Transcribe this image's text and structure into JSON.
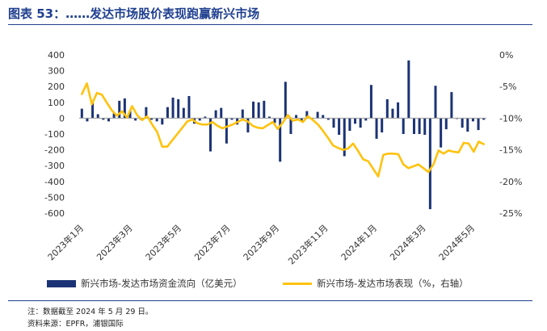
{
  "header": {
    "title": "图表 53：……发达市场股价表现跑赢新兴市场"
  },
  "footer": {
    "note": "注：数据截至 2024 年 5 月 29 日。",
    "source": "资料来源：EPFR，浦银国际"
  },
  "colors": {
    "bars": "#1b3375",
    "line": "#ffc20e",
    "title": "#1f3f8f"
  },
  "chart_data": {
    "type": "bar",
    "title": "",
    "x_tick_labels": [
      "2023年1月",
      "2023年3月",
      "2023年5月",
      "2023年7月",
      "2023年9月",
      "2023年11月",
      "2024年1月",
      "2024年3月",
      "2024年5月"
    ],
    "left_axis": {
      "ylim": [
        -600,
        400
      ],
      "ticks": [
        "400",
        "300",
        "200",
        "100",
        "0",
        "-100",
        "-200",
        "-300",
        "-400",
        "-500",
        "-600"
      ]
    },
    "right_axis": {
      "ylim": [
        -25,
        0
      ],
      "ticks": [
        "0%",
        "-5%",
        "-10%",
        "-15%",
        "-20%",
        "-25%"
      ]
    },
    "grid": false,
    "legend_position": "bottom",
    "series": [
      {
        "name": "新兴市场-发达市场资金流向（亿美元）",
        "type": "bar",
        "axis": "left",
        "values": [
          60,
          -20,
          100,
          25,
          -10,
          -20,
          30,
          110,
          125,
          50,
          -15,
          -10,
          70,
          -10,
          -20,
          -40,
          70,
          130,
          120,
          65,
          140,
          -35,
          -15,
          10,
          -210,
          50,
          65,
          -160,
          -10,
          -40,
          55,
          -90,
          105,
          100,
          110,
          10,
          -30,
          -275,
          230,
          -100,
          20,
          -20,
          45,
          -5,
          40,
          20,
          -10,
          -60,
          -105,
          -240,
          -80,
          -35,
          -60,
          -15,
          210,
          -130,
          -90,
          120,
          60,
          100,
          -100,
          365,
          -100,
          -100,
          -105,
          -575,
          205,
          -185,
          -70,
          165,
          -5,
          -60,
          -85,
          -20,
          -75,
          -10
        ]
      },
      {
        "name": "新兴市场-发达市场表现（%，右轴）",
        "type": "line",
        "axis": "right",
        "values": [
          -6.2,
          -4.5,
          -7.8,
          -6.0,
          -6.3,
          -7.6,
          -8.8,
          -9.6,
          -8.9,
          -9.9,
          -8.1,
          -9.5,
          -10.3,
          -9.7,
          -11.0,
          -12.2,
          -14.5,
          -14.5,
          -13.5,
          -12.5,
          -11.5,
          -10.5,
          -10.2,
          -10.8,
          -11.0,
          -11.0,
          -10.6,
          -11.2,
          -11.6,
          -11.3,
          -11.0,
          -10.6,
          -10.2,
          -10.5,
          -11.2,
          -11.5,
          -11.6,
          -11.1,
          -10.6,
          -11.7,
          -10.7,
          -9.5,
          -10.4,
          -10.2,
          -10.6,
          -9.7,
          -10.3,
          -11.0,
          -12.0,
          -13.1,
          -14.3,
          -14.7,
          -15.0,
          -14.8,
          -14.0,
          -15.2,
          -16.5,
          -16.8,
          -18.0,
          -19.2,
          -15.8,
          -15.6,
          -15.6,
          -15.7,
          -17.3,
          -17.9,
          -17.6,
          -17.3,
          -17.9,
          -18.5,
          -17.3,
          -15.1,
          -15.6,
          -15.1,
          -15.3,
          -15.4,
          -13.9,
          -14.0,
          -15.3,
          -13.7,
          -14.1
        ],
        "x_span_bars": [
          0,
          75
        ]
      }
    ]
  },
  "legend": {
    "bar_label": "新兴市场-发达市场资金流向（亿美元）",
    "line_label": "新兴市场-发达市场表现（%，右轴）"
  }
}
